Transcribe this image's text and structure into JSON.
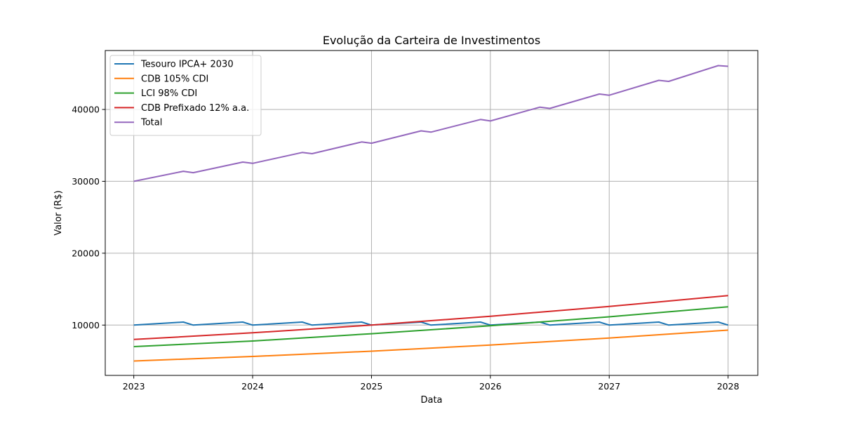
{
  "chart_data": {
    "type": "line",
    "title": "Evolução da Carteira de Investimentos",
    "xlabel": "Data",
    "ylabel": "Valor (R$)",
    "xlim": [
      2022.76,
      2028.25
    ],
    "ylim": [
      3000,
      48200
    ],
    "grid": true,
    "legend_position": "top-left",
    "x_ticks": [
      {
        "value": 2023,
        "label": "2023"
      },
      {
        "value": 2024,
        "label": "2024"
      },
      {
        "value": 2025,
        "label": "2025"
      },
      {
        "value": 2026,
        "label": "2026"
      },
      {
        "value": 2027,
        "label": "2027"
      },
      {
        "value": 2028,
        "label": "2028"
      }
    ],
    "y_ticks": [
      {
        "value": 10000,
        "label": "10000"
      },
      {
        "value": 20000,
        "label": "20000"
      },
      {
        "value": 30000,
        "label": "30000"
      },
      {
        "value": 40000,
        "label": "40000"
      }
    ],
    "series": [
      {
        "name": "Tesouro IPCA+ 2030",
        "color": "#1f77b4",
        "x": [
          2023.0,
          2023.417,
          2023.5,
          2023.917,
          2024.0,
          2024.417,
          2024.5,
          2024.917,
          2025.0,
          2025.417,
          2025.5,
          2025.917,
          2026.0,
          2026.417,
          2026.5,
          2026.917,
          2027.0,
          2027.417,
          2027.5,
          2027.917,
          2028.0
        ],
        "y": [
          10000,
          10420,
          10000,
          10420,
          10000,
          10420,
          10000,
          10420,
          10000,
          10420,
          10000,
          10420,
          10000,
          10420,
          10000,
          10420,
          10000,
          10420,
          10000,
          10420,
          10000
        ]
      },
      {
        "name": "CDB 105% CDI",
        "color": "#ff7f0e",
        "x": [
          2023,
          2024,
          2025,
          2026,
          2027,
          2028
        ],
        "y": [
          5000,
          5640,
          6370,
          7230,
          8200,
          9300
        ]
      },
      {
        "name": "LCI 98% CDI",
        "color": "#2ca02c",
        "x": [
          2023,
          2024,
          2025,
          2026,
          2027,
          2028
        ],
        "y": [
          7000,
          7780,
          8800,
          9900,
          11150,
          12550
        ]
      },
      {
        "name": "CDB Prefixado 12% a.a.",
        "color": "#d62728",
        "x": [
          2023,
          2024,
          2025,
          2026,
          2027,
          2028
        ],
        "y": [
          8000,
          8930,
          10000,
          11230,
          12600,
          14100
        ]
      },
      {
        "name": "Total",
        "color": "#9467bd",
        "x": [
          2023.0,
          2023.417,
          2023.5,
          2023.917,
          2024.0,
          2024.417,
          2024.5,
          2024.917,
          2025.0,
          2025.417,
          2025.5,
          2025.917,
          2026.0,
          2026.417,
          2026.5,
          2026.917,
          2027.0,
          2027.417,
          2027.5,
          2027.917,
          2028.0
        ],
        "y": [
          30000,
          31400,
          31200,
          32680,
          32500,
          34020,
          33850,
          35480,
          35300,
          37020,
          36850,
          38600,
          38400,
          40320,
          40150,
          42150,
          41980,
          44050,
          43900,
          46100,
          46000
        ]
      }
    ]
  }
}
